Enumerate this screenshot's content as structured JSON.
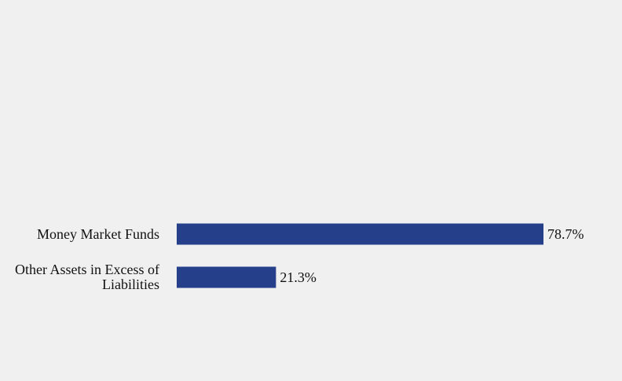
{
  "chart_data": {
    "type": "bar",
    "orientation": "horizontal",
    "title": "",
    "xlabel": "",
    "ylabel": "",
    "categories": [
      "Money Market Funds",
      "Other Assets in Excess of Liabilities"
    ],
    "values": [
      78.7,
      21.3
    ],
    "value_labels": [
      "78.7%",
      "21.3%"
    ],
    "xlim": [
      0,
      100
    ],
    "grid": false,
    "legend": "none",
    "bar_color": "#253f8a"
  }
}
